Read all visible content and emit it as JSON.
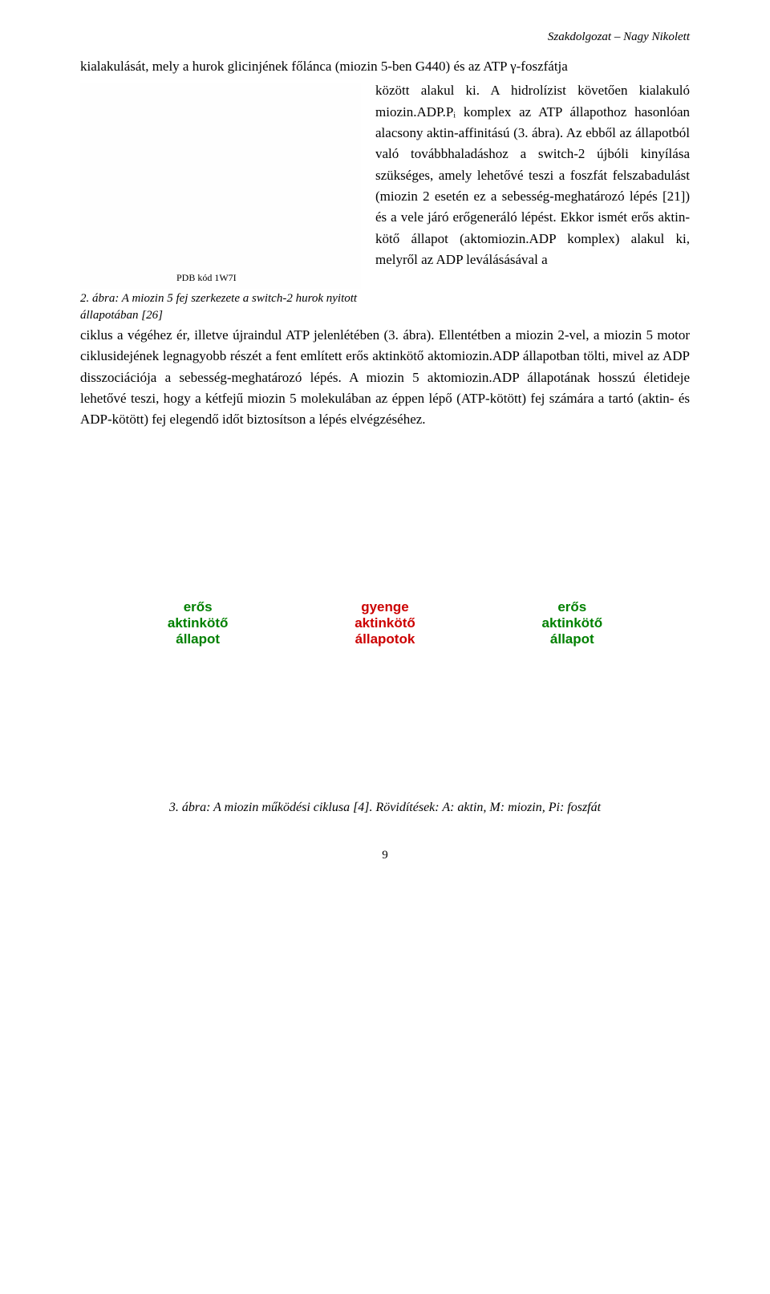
{
  "header": {
    "right": "Szakdolgozat – Nagy Nikolett"
  },
  "para": {
    "line1": "kialakulását, mely a hurok glicinjének főlánca (miozin 5-ben G440) és az ATP γ-foszfátja",
    "rightcol": "között alakul ki. A hidrolízist követően kialakuló miozin.ADP.Pᵢ komplex az ATP állapothoz hasonlóan alacsony aktin-affinitású (3. ábra). Az ebből az állapotból való továbbhaladáshoz a switch-2 újbóli kinyílása szükséges, amely lehetővé teszi a foszfát felszabadulást (miozin 2 esetén ez a sebesség-meghatározó lépés [21]) és a vele járó erőgeneráló lépést. Ekkor ismét erős aktin-kötő állapot (aktomiozin.ADP komplex) alakul ki, melyről az ADP leválásásával a",
    "rest": "ciklus a végéhez ér, illetve újraindul ATP jelenlétében (3. ábra). Ellentétben a miozin 2-vel, a miozin 5 motor ciklusidejének legnagyobb részét a fent említett erős aktinkötő aktomiozin.ADP állapotban tölti, mivel az ADP disszociációja a sebesség-meghatározó lépés. A miozin 5 aktomiozin.ADP állapotának hosszú életideje lehetővé teszi, hogy a kétfejű miozin 5 molekulában az éppen lépő (ATP-kötött) fej számára a tartó (aktin- és ADP-kötött) fej elegendő időt biztosítson a lépés elvégzéséhez."
  },
  "fig2": {
    "pdb": "PDB kód  1W7I",
    "caption": "2. ábra: A miozin 5 fej szerkezete a switch-2 hurok nyitott állapotában [26]"
  },
  "states": {
    "left_l1": "erős",
    "left_l2": "aktinkötő",
    "left_l3": "állapot",
    "mid_l1": "gyenge",
    "mid_l2": "aktinkötő",
    "mid_l3": "állapotok",
    "right_l1": "erős",
    "right_l2": "aktinkötő",
    "right_l3": "állapot"
  },
  "fig3": {
    "caption": "3. ábra: A miozin működési ciklusa [4]. Rövidítések: A: aktin, M: miozin, Pi: foszfát"
  },
  "pagenum": "9",
  "colors": {
    "green": "#008000",
    "red": "#cc0000",
    "text": "#000000",
    "bg": "#ffffff"
  }
}
